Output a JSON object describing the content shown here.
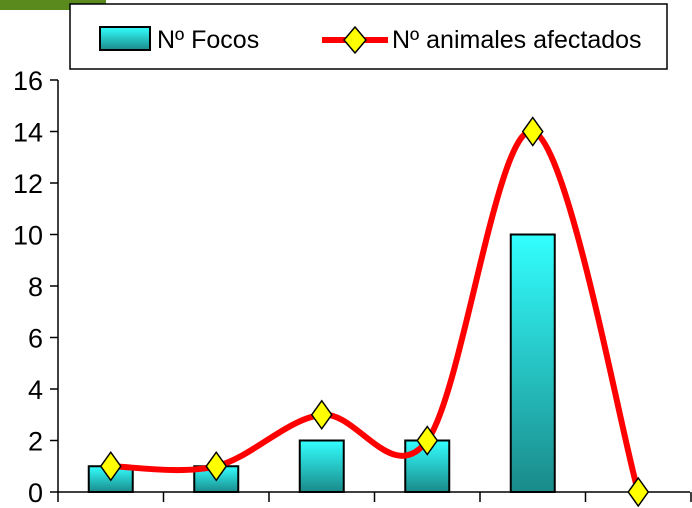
{
  "chart_data": {
    "type": "bar",
    "title": "",
    "xlabel": "",
    "ylabel": "",
    "categories": [
      "",
      "",
      "",
      "",
      "",
      ""
    ],
    "ylim": [
      0,
      16
    ],
    "yticks": [
      "0",
      "2",
      "4",
      "6",
      "8",
      "10",
      "12",
      "14",
      "16"
    ],
    "series": [
      {
        "name": "Nº Focos",
        "type": "bar",
        "values": [
          1,
          1,
          2,
          2,
          10,
          0
        ],
        "color_top": "#33ffff",
        "color_bottom": "#1a8a8a"
      },
      {
        "name": "Nº animales afectados",
        "type": "line",
        "smooth": true,
        "values": [
          1,
          1,
          3,
          2,
          14,
          0
        ],
        "line_color": "#ff0000",
        "marker": "diamond",
        "marker_color": "#ffff00"
      }
    ],
    "legend": "top"
  },
  "corner_accent_color": "#5a8a1e"
}
